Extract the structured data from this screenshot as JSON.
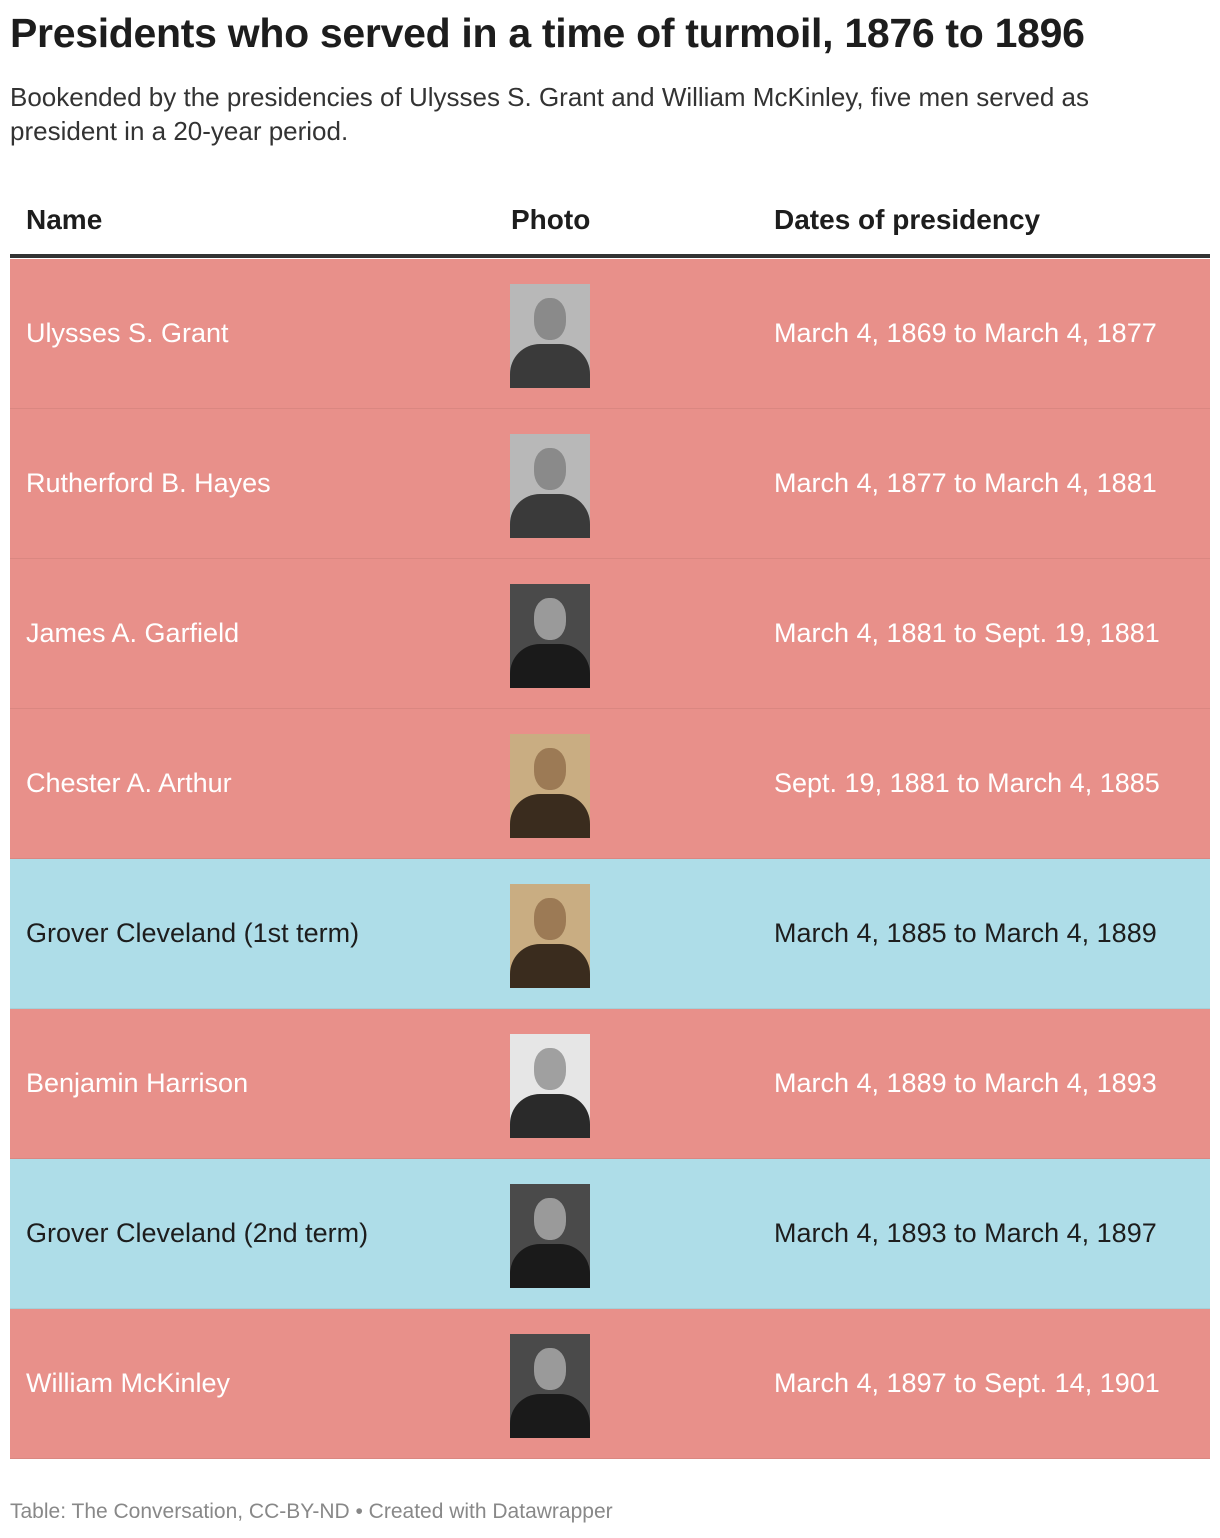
{
  "title": "Presidents who served in a time of turmoil, 1876 to 1896",
  "subtitle": "Bookended by the presidencies of Ulysses S. Grant and William McKinley, five men served as president in a 20-year period.",
  "footer": "Table: The Conversation, CC-BY-ND • Created with Datawrapper",
  "colors": {
    "republican_row": "#e8908a",
    "democrat_row": "#aedde8",
    "light_text": "#ffffff",
    "dark_text": "#1d1d1d"
  },
  "chart_data": {
    "type": "table",
    "columns": [
      "Name",
      "Photo",
      "Dates of presidency"
    ],
    "rows": [
      {
        "name": "Ulysses S. Grant",
        "photo": "portrait-photo",
        "dates": "March 4, 1869 to March 4, 1877",
        "row_color": "#e8908a",
        "photo_tone": "gray"
      },
      {
        "name": "Rutherford B. Hayes",
        "photo": "portrait-photo",
        "dates": "March 4, 1877 to March 4, 1881",
        "row_color": "#e8908a",
        "photo_tone": "gray"
      },
      {
        "name": "James A. Garfield",
        "photo": "portrait-photo",
        "dates": "March 4, 1881 to Sept. 19, 1881",
        "row_color": "#e8908a",
        "photo_tone": "dark"
      },
      {
        "name": "Chester A. Arthur",
        "photo": "portrait-photo",
        "dates": "Sept. 19, 1881 to March 4, 1885",
        "row_color": "#e8908a",
        "photo_tone": "sepia"
      },
      {
        "name": "Grover Cleveland (1st term)",
        "photo": "portrait-photo",
        "dates": "March 4, 1885 to March 4, 1889",
        "row_color": "#aedde8",
        "photo_tone": "sepia"
      },
      {
        "name": "Benjamin Harrison",
        "photo": "portrait-photo",
        "dates": "March 4, 1889 to March 4, 1893",
        "row_color": "#e8908a",
        "photo_tone": "light"
      },
      {
        "name": "Grover Cleveland (2nd term)",
        "photo": "portrait-photo",
        "dates": "March 4, 1893 to March 4, 1897",
        "row_color": "#aedde8",
        "photo_tone": "dark"
      },
      {
        "name": "William McKinley",
        "photo": "portrait-photo",
        "dates": "March 4, 1897 to Sept. 14, 1901",
        "row_color": "#e8908a",
        "photo_tone": "dark"
      }
    ]
  }
}
